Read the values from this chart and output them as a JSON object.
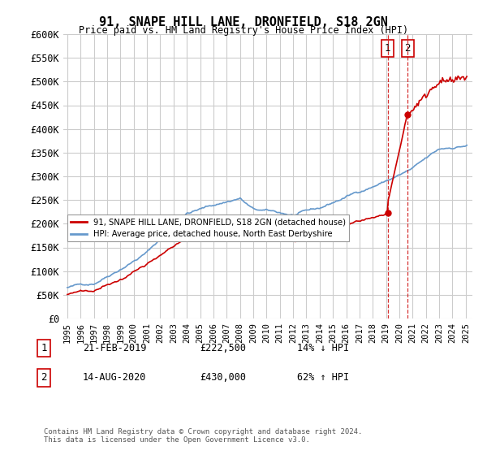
{
  "title": "91, SNAPE HILL LANE, DRONFIELD, S18 2GN",
  "subtitle": "Price paid vs. HM Land Registry's House Price Index (HPI)",
  "ylabel_ticks": [
    "£0",
    "£50K",
    "£100K",
    "£150K",
    "£200K",
    "£250K",
    "£300K",
    "£350K",
    "£400K",
    "£450K",
    "£500K",
    "£550K",
    "£600K"
  ],
  "ylim": [
    0,
    600000
  ],
  "xlim_start": 1994.7,
  "xlim_end": 2025.5,
  "transaction1": {
    "date": "21-FEB-2019",
    "year": 2019.12,
    "price": 222500,
    "label": "1",
    "pct": "14% ↓ HPI"
  },
  "transaction2": {
    "date": "14-AUG-2020",
    "year": 2020.62,
    "price": 430000,
    "label": "2",
    "pct": "62% ↑ HPI"
  },
  "legend_label_red": "91, SNAPE HILL LANE, DRONFIELD, S18 2GN (detached house)",
  "legend_label_blue": "HPI: Average price, detached house, North East Derbyshire",
  "footer": "Contains HM Land Registry data © Crown copyright and database right 2024.\nThis data is licensed under the Open Government Licence v3.0.",
  "red_color": "#cc0000",
  "blue_color": "#6699cc",
  "vline_color": "#cc0000",
  "background_color": "#ffffff",
  "grid_color": "#cccccc"
}
